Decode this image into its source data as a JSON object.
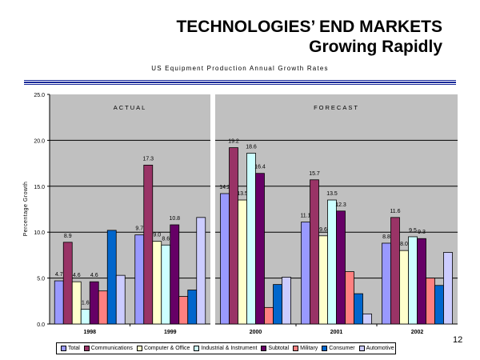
{
  "header": {
    "title": "TECHNOLOGIES’ END MARKETS",
    "subtitle": "Growing Rapidly"
  },
  "page_number": "12",
  "chart_data": {
    "type": "bar",
    "title": "US Equipment Production Annual Growth Rates",
    "ylabel": "Percentage Growth",
    "xlabel": "",
    "ylim": [
      0,
      25
    ],
    "yticks": [
      "0.0",
      "5.0",
      "10.0",
      "15.0",
      "20.0",
      "25.0"
    ],
    "grid": true,
    "legend_position": "bottom",
    "panels": [
      {
        "label": "ACTUAL",
        "categories": [
          "1998",
          "1999"
        ]
      },
      {
        "label": "FORECAST",
        "categories": [
          "2000",
          "2001",
          "2002"
        ]
      }
    ],
    "categories": [
      "1998",
      "1999",
      "2000",
      "2001",
      "2002"
    ],
    "series": [
      {
        "name": "Total",
        "color": "#9999FF",
        "values": [
          4.7,
          9.7,
          14.2,
          11.1,
          8.8
        ],
        "labels": [
          "4.7",
          "9.7",
          "14.2",
          "11.1",
          "8.8"
        ]
      },
      {
        "name": "Communications",
        "color": "#993366",
        "values": [
          8.9,
          17.3,
          19.2,
          15.7,
          11.6
        ],
        "labels": [
          "8.9",
          "17.3",
          "19.2",
          "15.7",
          "11.6"
        ]
      },
      {
        "name": "Computer & Office",
        "color": "#FFFFCC",
        "values": [
          4.6,
          9.0,
          13.5,
          9.6,
          8.0
        ],
        "labels": [
          "4.6",
          "9.0",
          "13.5",
          "9.6",
          "8.0"
        ]
      },
      {
        "name": "Industrial & Instrument",
        "color": "#CCFFFF",
        "values": [
          1.6,
          8.6,
          18.6,
          13.5,
          9.5
        ],
        "labels": [
          "1.6",
          "8.6",
          "18.6",
          "13.5",
          "9.5"
        ]
      },
      {
        "name": "Subtotal",
        "color": "#660066",
        "values": [
          4.6,
          10.8,
          16.4,
          12.3,
          9.3
        ],
        "labels": [
          "4.6",
          "10.8",
          "16.4",
          "12.3",
          "9.3"
        ]
      },
      {
        "name": "Military",
        "color": "#FF8080",
        "values": [
          3.6,
          3.0,
          1.8,
          5.7,
          5.0
        ]
      },
      {
        "name": "Consumer",
        "color": "#0066CC",
        "values": [
          10.2,
          3.7,
          4.3,
          3.3,
          4.2
        ]
      },
      {
        "name": "Automotive",
        "color": "#CCCCFF",
        "values": [
          5.3,
          11.6,
          5.1,
          1.1,
          7.8
        ]
      }
    ]
  }
}
